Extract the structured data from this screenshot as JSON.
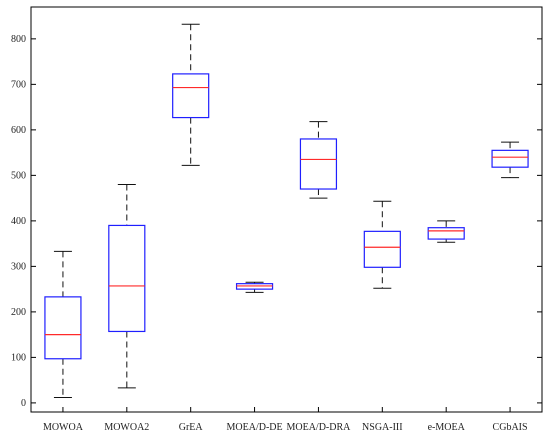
{
  "chart_data": {
    "type": "box",
    "title": "",
    "xlabel": "",
    "ylabel": "",
    "ylim": [
      -20,
      870
    ],
    "yticks": [
      0,
      100,
      200,
      300,
      400,
      500,
      600,
      700,
      800
    ],
    "grid": false,
    "legend": "none",
    "categories": [
      "MOWOA",
      "MOWOA2",
      "GrEA",
      "MOEA/D-DE",
      "MOEA/D-DRA",
      "NSGA-III",
      "e-MOEA",
      "CGbAIS"
    ],
    "boxes": [
      {
        "category": "MOWOA",
        "whisker_low": 12,
        "q1": 97,
        "median": 150,
        "q3": 233,
        "whisker_high": 333
      },
      {
        "category": "MOWOA2",
        "whisker_low": 33,
        "q1": 157,
        "median": 257,
        "q3": 390,
        "whisker_high": 480
      },
      {
        "category": "GrEA",
        "whisker_low": 522,
        "q1": 627,
        "median": 693,
        "q3": 723,
        "whisker_high": 832
      },
      {
        "category": "MOEA/D-DE",
        "whisker_low": 243,
        "q1": 250,
        "median": 257,
        "q3": 262,
        "whisker_high": 265
      },
      {
        "category": "MOEA/D-DRA",
        "whisker_low": 450,
        "q1": 470,
        "median": 535,
        "q3": 580,
        "whisker_high": 618
      },
      {
        "category": "NSGA-III",
        "whisker_low": 252,
        "q1": 298,
        "median": 342,
        "q3": 377,
        "whisker_high": 443
      },
      {
        "category": "e-MOEA",
        "whisker_low": 353,
        "q1": 360,
        "median": 378,
        "q3": 385,
        "whisker_high": 400
      },
      {
        "category": "CGbAIS",
        "whisker_low": 495,
        "q1": 518,
        "median": 540,
        "q3": 555,
        "whisker_high": 573
      }
    ]
  },
  "style": {
    "box_color": "#1f1fff",
    "median_color": "#ff2a2a",
    "whisker_color": "#111111",
    "axis_color": "#000000"
  }
}
